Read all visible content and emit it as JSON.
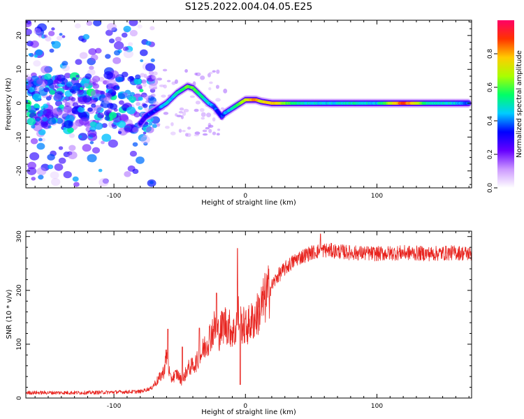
{
  "figure": {
    "title": "S125.2022.004.04.05.E25"
  },
  "chart_data": [
    {
      "type": "heatmap",
      "xlabel": "Height of straight line (km)",
      "ylabel": "Frequency (Hz)",
      "xlim": [
        -167,
        172
      ],
      "ylim": [
        -25,
        24.5
      ],
      "xticks": [
        -100,
        0,
        100
      ],
      "yticks": [
        -20,
        -10,
        0,
        10,
        20
      ],
      "colorbar": {
        "label": "Normalized spectral amplitude",
        "range": [
          0,
          1
        ],
        "ticks": [
          0.0,
          0.2,
          0.4,
          0.6,
          0.8
        ],
        "colors": [
          "#ffffff",
          "#cc99ff",
          "#6600ff",
          "#0000ff",
          "#00ccff",
          "#00ff66",
          "#aaff00",
          "#ffcc00",
          "#ff3300",
          "#ff0066"
        ]
      },
      "ridge": {
        "x": [
          -80,
          -76,
          -72,
          -68,
          -64,
          -60,
          -56,
          -52,
          -48,
          -44,
          -40,
          -36,
          -32,
          -28,
          -24,
          -20,
          -18,
          -16,
          -12,
          -8,
          -4,
          0,
          4,
          8,
          12,
          20,
          40,
          60,
          80,
          100,
          120,
          140,
          160,
          170
        ],
        "y": [
          -6,
          -4,
          -3,
          -2,
          -1,
          0,
          1.5,
          3,
          4,
          5,
          4.5,
          3,
          1.5,
          0,
          -1,
          -3,
          -4,
          -3,
          -2,
          -1,
          0,
          1,
          1,
          1,
          0.5,
          0,
          0,
          0,
          0,
          0,
          0,
          0,
          0,
          0
        ],
        "amplitude": [
          0.3,
          0.3,
          0.35,
          0.35,
          0.4,
          0.45,
          0.45,
          0.5,
          0.55,
          0.6,
          0.6,
          0.55,
          0.5,
          0.45,
          0.4,
          0.35,
          0.35,
          0.4,
          0.45,
          0.5,
          0.6,
          0.7,
          0.8,
          0.85,
          0.7,
          0.8,
          0.5,
          0.45,
          0.5,
          0.45,
          0.9,
          0.5,
          0.45,
          0.35
        ]
      },
      "noise_region": {
        "x_range": [
          -167,
          -78
        ],
        "y_range": [
          -24,
          24
        ],
        "amplitude_range": [
          0.05,
          0.45
        ]
      }
    },
    {
      "type": "line",
      "xlabel": "Height of straight line (km)",
      "ylabel": "SNR (10 * v/v)",
      "xlim": [
        -167,
        172
      ],
      "ylim": [
        0,
        310
      ],
      "xticks": [
        -100,
        0,
        100
      ],
      "yticks": [
        0,
        100,
        200,
        300
      ],
      "color": "#e8241f",
      "envelope": {
        "x": [
          -167,
          -120,
          -80,
          -72,
          -66,
          -62,
          -60,
          -57,
          -52,
          -48,
          -44,
          -40,
          -36,
          -32,
          -28,
          -24,
          -20,
          -16,
          -12,
          -8,
          -6,
          -4,
          0,
          8,
          16,
          24,
          32,
          40,
          50,
          60,
          80,
          100,
          120,
          140,
          160,
          172
        ],
        "y": [
          10,
          10,
          12,
          18,
          35,
          50,
          80,
          35,
          45,
          30,
          55,
          60,
          70,
          90,
          110,
          130,
          120,
          140,
          130,
          120,
          160,
          140,
          130,
          150,
          190,
          225,
          245,
          260,
          270,
          275,
          270,
          268,
          270,
          268,
          270,
          268
        ]
      },
      "spikes": [
        {
          "x": -59,
          "y": 128
        },
        {
          "x": -48,
          "y": 95
        },
        {
          "x": -35,
          "y": 130
        },
        {
          "x": -22,
          "y": 195
        },
        {
          "x": -6,
          "y": 278
        },
        {
          "x": -4,
          "y": 25
        },
        {
          "x": 57,
          "y": 305
        }
      ]
    }
  ]
}
